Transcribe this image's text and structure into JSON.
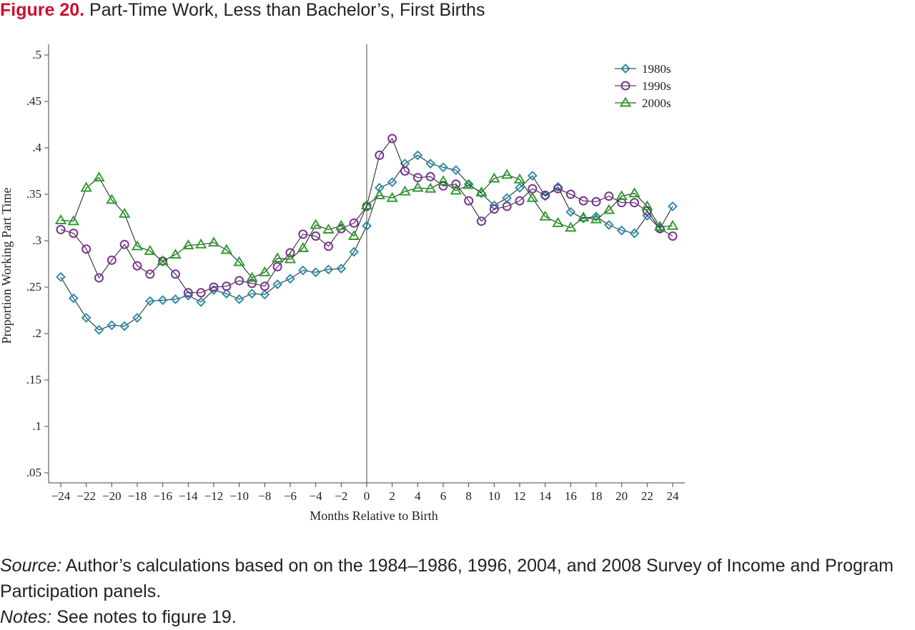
{
  "figure": {
    "label": "Figure 20.",
    "title": "Part-Time Work, Less than Bachelor’s, First Births"
  },
  "source": {
    "label": "Source:",
    "text": " Author’s calculations based on on the 1984–1986, 1996, 2004, and 2008 Survey of Income and Program Participation panels."
  },
  "notes": {
    "label": "Notes:",
    "text": " See notes to figure 19."
  },
  "chart_data": {
    "type": "line",
    "xlabel": "Months Relative to Birth",
    "ylabel": "Proportion Working Part Time",
    "xlim": [
      -24,
      24
    ],
    "ylim": [
      0.05,
      0.5
    ],
    "xticks": [
      -24,
      -22,
      -20,
      -18,
      -16,
      -14,
      -12,
      -10,
      -8,
      -6,
      -4,
      -2,
      0,
      2,
      4,
      6,
      8,
      10,
      12,
      14,
      16,
      18,
      20,
      22,
      24
    ],
    "xtick_labels": [
      "−24",
      "−22",
      "−20",
      "−18",
      "−16",
      "−14",
      "−12",
      "−10",
      "−8",
      "−6",
      "−4",
      "−2",
      "0",
      "2",
      "4",
      "6",
      "8",
      "10",
      "12",
      "14",
      "16",
      "18",
      "20",
      "22",
      "24"
    ],
    "yticks": [
      0.05,
      0.1,
      0.15,
      0.2,
      0.25,
      0.3,
      0.35,
      0.4,
      0.45,
      0.5
    ],
    "ytick_labels": [
      ".05",
      ".1",
      ".15",
      ".2",
      ".25",
      ".3",
      ".35",
      ".4",
      ".45",
      ".5"
    ],
    "vline_x": 0,
    "grid": false,
    "legend_position": "top-right",
    "x": [
      -24,
      -23,
      -22,
      -21,
      -20,
      -19,
      -18,
      -17,
      -16,
      -15,
      -14,
      -13,
      -12,
      -11,
      -10,
      -9,
      -8,
      -7,
      -6,
      -5,
      -4,
      -3,
      -2,
      -1,
      0,
      1,
      2,
      3,
      4,
      5,
      6,
      7,
      8,
      9,
      10,
      11,
      12,
      13,
      14,
      15,
      16,
      17,
      18,
      19,
      20,
      21,
      22,
      23,
      24
    ],
    "series": [
      {
        "name": "1980s",
        "marker": "diamond",
        "color": "#2a8fb0",
        "values": [
          0.261,
          0.238,
          0.217,
          0.204,
          0.209,
          0.208,
          0.217,
          0.235,
          0.236,
          0.237,
          0.241,
          0.234,
          0.247,
          0.243,
          0.237,
          0.243,
          0.242,
          0.253,
          0.259,
          0.268,
          0.266,
          0.269,
          0.27,
          0.288,
          0.316,
          0.357,
          0.363,
          0.383,
          0.392,
          0.383,
          0.379,
          0.376,
          0.361,
          0.351,
          0.338,
          0.346,
          0.357,
          0.37,
          0.348,
          0.358,
          0.331,
          0.324,
          0.326,
          0.317,
          0.311,
          0.308,
          0.327,
          0.313,
          0.337
        ]
      },
      {
        "name": "1990s",
        "marker": "circle",
        "color": "#7b3294",
        "values": [
          0.312,
          0.308,
          0.291,
          0.26,
          0.279,
          0.296,
          0.273,
          0.264,
          0.278,
          0.264,
          0.244,
          0.244,
          0.25,
          0.251,
          0.257,
          0.254,
          0.251,
          0.272,
          0.287,
          0.307,
          0.305,
          0.294,
          0.313,
          0.319,
          0.337,
          0.392,
          0.41,
          0.375,
          0.368,
          0.369,
          0.359,
          0.361,
          0.343,
          0.321,
          0.334,
          0.337,
          0.343,
          0.356,
          0.349,
          0.356,
          0.35,
          0.343,
          0.342,
          0.348,
          0.341,
          0.341,
          0.332,
          0.313,
          0.305
        ]
      },
      {
        "name": "2000s",
        "marker": "triangle",
        "color": "#2ca02c",
        "values": [
          0.322,
          0.321,
          0.357,
          0.368,
          0.344,
          0.329,
          0.294,
          0.289,
          0.278,
          0.285,
          0.295,
          0.296,
          0.298,
          0.29,
          0.277,
          0.26,
          0.266,
          0.281,
          0.28,
          0.292,
          0.317,
          0.312,
          0.316,
          0.305,
          0.338,
          0.349,
          0.346,
          0.353,
          0.357,
          0.356,
          0.364,
          0.354,
          0.36,
          0.352,
          0.367,
          0.371,
          0.366,
          0.346,
          0.326,
          0.319,
          0.314,
          0.325,
          0.323,
          0.333,
          0.348,
          0.351,
          0.337,
          0.315,
          0.316
        ]
      }
    ]
  }
}
